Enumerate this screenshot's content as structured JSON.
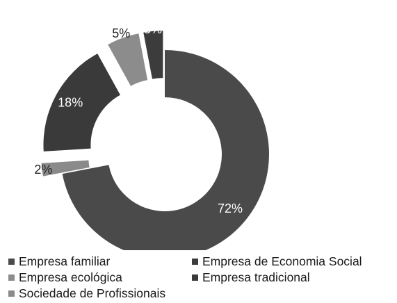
{
  "chart_data": {
    "type": "pie",
    "variant": "exploded-donut",
    "title": "",
    "slices": [
      {
        "name": "Empresa familiar",
        "value": 72,
        "label": "72%",
        "color": "#4a4a4a",
        "label_color": "#ffffff"
      },
      {
        "name": "Empresa de Economia Social",
        "value": 3,
        "label": "3%",
        "color": "#3c3c3c",
        "label_color": "#ffffff"
      },
      {
        "name": "Empresa ecológica",
        "value": 5,
        "label": "5%",
        "color": "#8c8c8c",
        "label_color": "#222222"
      },
      {
        "name": "Empresa tradicional",
        "value": 18,
        "label": "18%",
        "color": "#3a3a3a",
        "label_color": "#ffffff"
      },
      {
        "name": "Sociedade de Profissionais",
        "value": 2,
        "label": "2%",
        "color": "#8a8a8a",
        "label_color": "#222222"
      }
    ],
    "legend_position": "bottom",
    "legend": [
      {
        "name": "Empresa familiar",
        "color": "#4a4a4a"
      },
      {
        "name": "Empresa de Economia Social",
        "color": "#3c3c3c"
      },
      {
        "name": "Empresa ecológica",
        "color": "#8c8c8c"
      },
      {
        "name": "Empresa tradicional",
        "color": "#3a3a3a"
      },
      {
        "name": "Sociedade de Profissionais",
        "color": "#8a8a8a"
      }
    ]
  }
}
